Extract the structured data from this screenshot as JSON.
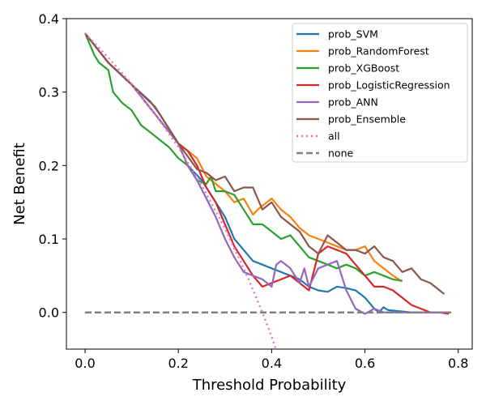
{
  "chart_data": {
    "type": "line",
    "xlabel": "Threshold Probability",
    "ylabel": "Net Benefit",
    "xlim": [
      -0.04,
      0.83
    ],
    "ylim": [
      -0.05,
      0.4
    ],
    "x_ticks": [
      "0.0",
      "0.2",
      "0.4",
      "0.6",
      "0.8"
    ],
    "y_ticks": [
      "0.0",
      "0.1",
      "0.2",
      "0.3",
      "0.4"
    ],
    "legend_position": "top-right",
    "grid": false,
    "series": [
      {
        "name": "prob_SVM",
        "color": "#1f77b4",
        "dash": "solid",
        "x": [
          0.0,
          0.05,
          0.1,
          0.14,
          0.16,
          0.2,
          0.22,
          0.25,
          0.27,
          0.3,
          0.32,
          0.34,
          0.36,
          0.38,
          0.4,
          0.42,
          0.44,
          0.46,
          0.48,
          0.5,
          0.52,
          0.54,
          0.56,
          0.58,
          0.6,
          0.62,
          0.63,
          0.64,
          0.65,
          0.7,
          0.75,
          0.78
        ],
        "y": [
          0.38,
          0.34,
          0.31,
          0.287,
          0.27,
          0.23,
          0.2,
          0.18,
          0.16,
          0.13,
          0.1,
          0.085,
          0.07,
          0.065,
          0.06,
          0.055,
          0.05,
          0.045,
          0.035,
          0.03,
          0.028,
          0.035,
          0.033,
          0.03,
          0.02,
          0.005,
          0.0,
          0.007,
          0.003,
          0.0,
          0.0,
          0.0
        ]
      },
      {
        "name": "prob_RandomForest",
        "color": "#ff7f0e",
        "dash": "solid",
        "x": [
          0.0,
          0.05,
          0.1,
          0.15,
          0.2,
          0.24,
          0.26,
          0.28,
          0.3,
          0.32,
          0.34,
          0.36,
          0.37,
          0.38,
          0.4,
          0.42,
          0.44,
          0.46,
          0.48,
          0.5,
          0.52,
          0.54,
          0.56,
          0.58,
          0.6,
          0.62,
          0.64,
          0.66,
          0.68
        ],
        "y": [
          0.38,
          0.34,
          0.31,
          0.27,
          0.23,
          0.21,
          0.185,
          0.175,
          0.165,
          0.15,
          0.155,
          0.133,
          0.14,
          0.145,
          0.155,
          0.14,
          0.13,
          0.115,
          0.105,
          0.1,
          0.095,
          0.09,
          0.085,
          0.085,
          0.09,
          0.07,
          0.06,
          0.05,
          0.042
        ]
      },
      {
        "name": "prob_XGBoost",
        "color": "#2ca02c",
        "dash": "solid",
        "x": [
          0.0,
          0.02,
          0.03,
          0.05,
          0.06,
          0.08,
          0.1,
          0.12,
          0.14,
          0.16,
          0.18,
          0.2,
          0.22,
          0.24,
          0.26,
          0.27,
          0.28,
          0.3,
          0.32,
          0.34,
          0.36,
          0.38,
          0.4,
          0.42,
          0.44,
          0.46,
          0.48,
          0.5,
          0.52,
          0.54,
          0.56,
          0.58,
          0.6,
          0.62,
          0.64,
          0.66,
          0.68
        ],
        "y": [
          0.38,
          0.35,
          0.34,
          0.33,
          0.3,
          0.285,
          0.275,
          0.255,
          0.245,
          0.235,
          0.225,
          0.21,
          0.2,
          0.18,
          0.175,
          0.185,
          0.165,
          0.165,
          0.16,
          0.14,
          0.12,
          0.12,
          0.11,
          0.1,
          0.105,
          0.09,
          0.075,
          0.07,
          0.065,
          0.06,
          0.065,
          0.06,
          0.05,
          0.055,
          0.05,
          0.045,
          0.043
        ]
      },
      {
        "name": "prob_LogisticRegression",
        "color": "#d62728",
        "dash": "solid",
        "x": [
          0.0,
          0.05,
          0.1,
          0.15,
          0.2,
          0.22,
          0.24,
          0.26,
          0.28,
          0.3,
          0.32,
          0.34,
          0.36,
          0.38,
          0.4,
          0.42,
          0.44,
          0.46,
          0.48,
          0.5,
          0.52,
          0.54,
          0.56,
          0.58,
          0.6,
          0.62,
          0.64,
          0.66,
          0.68,
          0.7,
          0.72,
          0.74,
          0.76,
          0.78
        ],
        "y": [
          0.38,
          0.34,
          0.31,
          0.27,
          0.23,
          0.22,
          0.2,
          0.17,
          0.15,
          0.12,
          0.09,
          0.07,
          0.05,
          0.035,
          0.04,
          0.045,
          0.05,
          0.04,
          0.03,
          0.08,
          0.09,
          0.085,
          0.08,
          0.065,
          0.05,
          0.035,
          0.035,
          0.03,
          0.02,
          0.01,
          0.005,
          0.0,
          0.0,
          -0.002
        ]
      },
      {
        "name": "prob_ANN",
        "color": "#9467bd",
        "dash": "solid",
        "x": [
          0.0,
          0.05,
          0.1,
          0.15,
          0.2,
          0.22,
          0.24,
          0.26,
          0.28,
          0.3,
          0.32,
          0.34,
          0.36,
          0.38,
          0.4,
          0.41,
          0.42,
          0.44,
          0.46,
          0.47,
          0.48,
          0.5,
          0.52,
          0.54,
          0.56,
          0.58,
          0.6,
          0.62,
          0.64,
          0.66,
          0.7,
          0.74,
          0.78
        ],
        "y": [
          0.38,
          0.34,
          0.31,
          0.27,
          0.23,
          0.2,
          0.18,
          0.155,
          0.13,
          0.1,
          0.075,
          0.055,
          0.05,
          0.045,
          0.035,
          0.065,
          0.07,
          0.06,
          0.04,
          0.06,
          0.035,
          0.06,
          0.065,
          0.07,
          0.03,
          0.005,
          -0.002,
          0.005,
          0.0,
          0.0,
          0.0,
          0.0,
          0.0
        ]
      },
      {
        "name": "prob_Ensemble",
        "color": "#8c564b",
        "dash": "solid",
        "x": [
          0.0,
          0.05,
          0.1,
          0.15,
          0.2,
          0.24,
          0.26,
          0.28,
          0.3,
          0.32,
          0.34,
          0.36,
          0.38,
          0.4,
          0.42,
          0.44,
          0.46,
          0.48,
          0.5,
          0.52,
          0.54,
          0.56,
          0.58,
          0.6,
          0.62,
          0.64,
          0.66,
          0.68,
          0.7,
          0.72,
          0.74,
          0.76,
          0.77
        ],
        "y": [
          0.38,
          0.34,
          0.31,
          0.28,
          0.23,
          0.195,
          0.19,
          0.18,
          0.185,
          0.165,
          0.17,
          0.17,
          0.14,
          0.15,
          0.13,
          0.12,
          0.11,
          0.09,
          0.08,
          0.105,
          0.095,
          0.085,
          0.085,
          0.08,
          0.09,
          0.075,
          0.07,
          0.055,
          0.06,
          0.045,
          0.04,
          0.03,
          0.025
        ]
      },
      {
        "name": "all",
        "color": "#e377c2",
        "dash": "dotted",
        "x": [
          0.0,
          0.05,
          0.1,
          0.15,
          0.2,
          0.25,
          0.3,
          0.35,
          0.38,
          0.4,
          0.41
        ],
        "y": [
          0.38,
          0.347,
          0.311,
          0.27,
          0.225,
          0.173,
          0.114,
          0.046,
          0.0,
          -0.033,
          -0.052
        ]
      },
      {
        "name": "none",
        "color": "#7f7f7f",
        "dash": "dashed",
        "x": [
          0.0,
          0.79
        ],
        "y": [
          0.0,
          0.0
        ]
      }
    ]
  }
}
